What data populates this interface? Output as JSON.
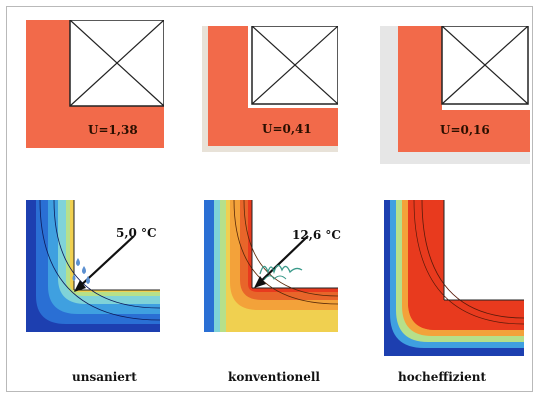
{
  "panels": [
    {
      "u_value": "U=1,38",
      "surface_temperature": "5,0 °C",
      "caption": "unsaniert"
    },
    {
      "u_value": "U=0,41",
      "surface_temperature": "12,6 °C",
      "caption": "konventionell"
    },
    {
      "u_value": "U=0,16",
      "surface_temperature": "",
      "caption": "hocheffizient"
    }
  ],
  "colors": {
    "wall": "#f26a4a",
    "insulation": "#e6e6e6",
    "window_bg": "#ffffff",
    "cold": "#1d3fb0",
    "warm": "#e83a1e"
  },
  "icons": [
    "window-cross-icon",
    "water-drop-icon",
    "mold-squiggle-icon",
    "arrow-icon"
  ]
}
